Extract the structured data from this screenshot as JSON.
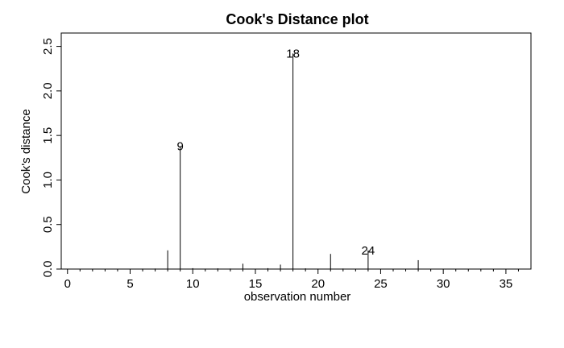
{
  "chart_data": {
    "type": "bar",
    "title": "Cook's Distance plot",
    "xlabel": "observation number",
    "ylabel": "Cook's distance",
    "xlim": [
      -0.5,
      37
    ],
    "ylim": [
      0,
      2.65
    ],
    "x_ticks": [
      0,
      5,
      10,
      15,
      20,
      25,
      30,
      35
    ],
    "y_ticks": [
      0.0,
      0.5,
      1.0,
      1.5,
      2.0,
      2.5
    ],
    "y_tick_labels": [
      "0.0",
      "0.5",
      "1.0",
      "1.5",
      "2.0",
      "2.5"
    ],
    "x": [
      0,
      1,
      2,
      3,
      4,
      5,
      6,
      7,
      8,
      9,
      10,
      11,
      12,
      13,
      14,
      15,
      16,
      17,
      18,
      19,
      20,
      21,
      22,
      23,
      24,
      25,
      26,
      27,
      28,
      29,
      30,
      31,
      32,
      33,
      34,
      35,
      36
    ],
    "values": [
      0.003,
      0.002,
      0.004,
      0.002,
      0.003,
      0.004,
      0.005,
      0.006,
      0.21,
      1.38,
      0.01,
      0.005,
      0.008,
      0.006,
      0.06,
      0.004,
      0.01,
      0.05,
      2.42,
      0.008,
      0.005,
      0.17,
      0.006,
      0.004,
      0.21,
      0.004,
      0.003,
      0.004,
      0.1,
      0.004,
      0.003,
      0.002,
      0.003,
      0.002,
      0.004,
      0.002,
      0.003
    ],
    "annotations": [
      {
        "x": 9,
        "y": 1.38,
        "label": "9"
      },
      {
        "x": 18,
        "y": 2.42,
        "label": "18"
      },
      {
        "x": 24,
        "y": 0.21,
        "label": "24"
      }
    ],
    "grid": false
  }
}
